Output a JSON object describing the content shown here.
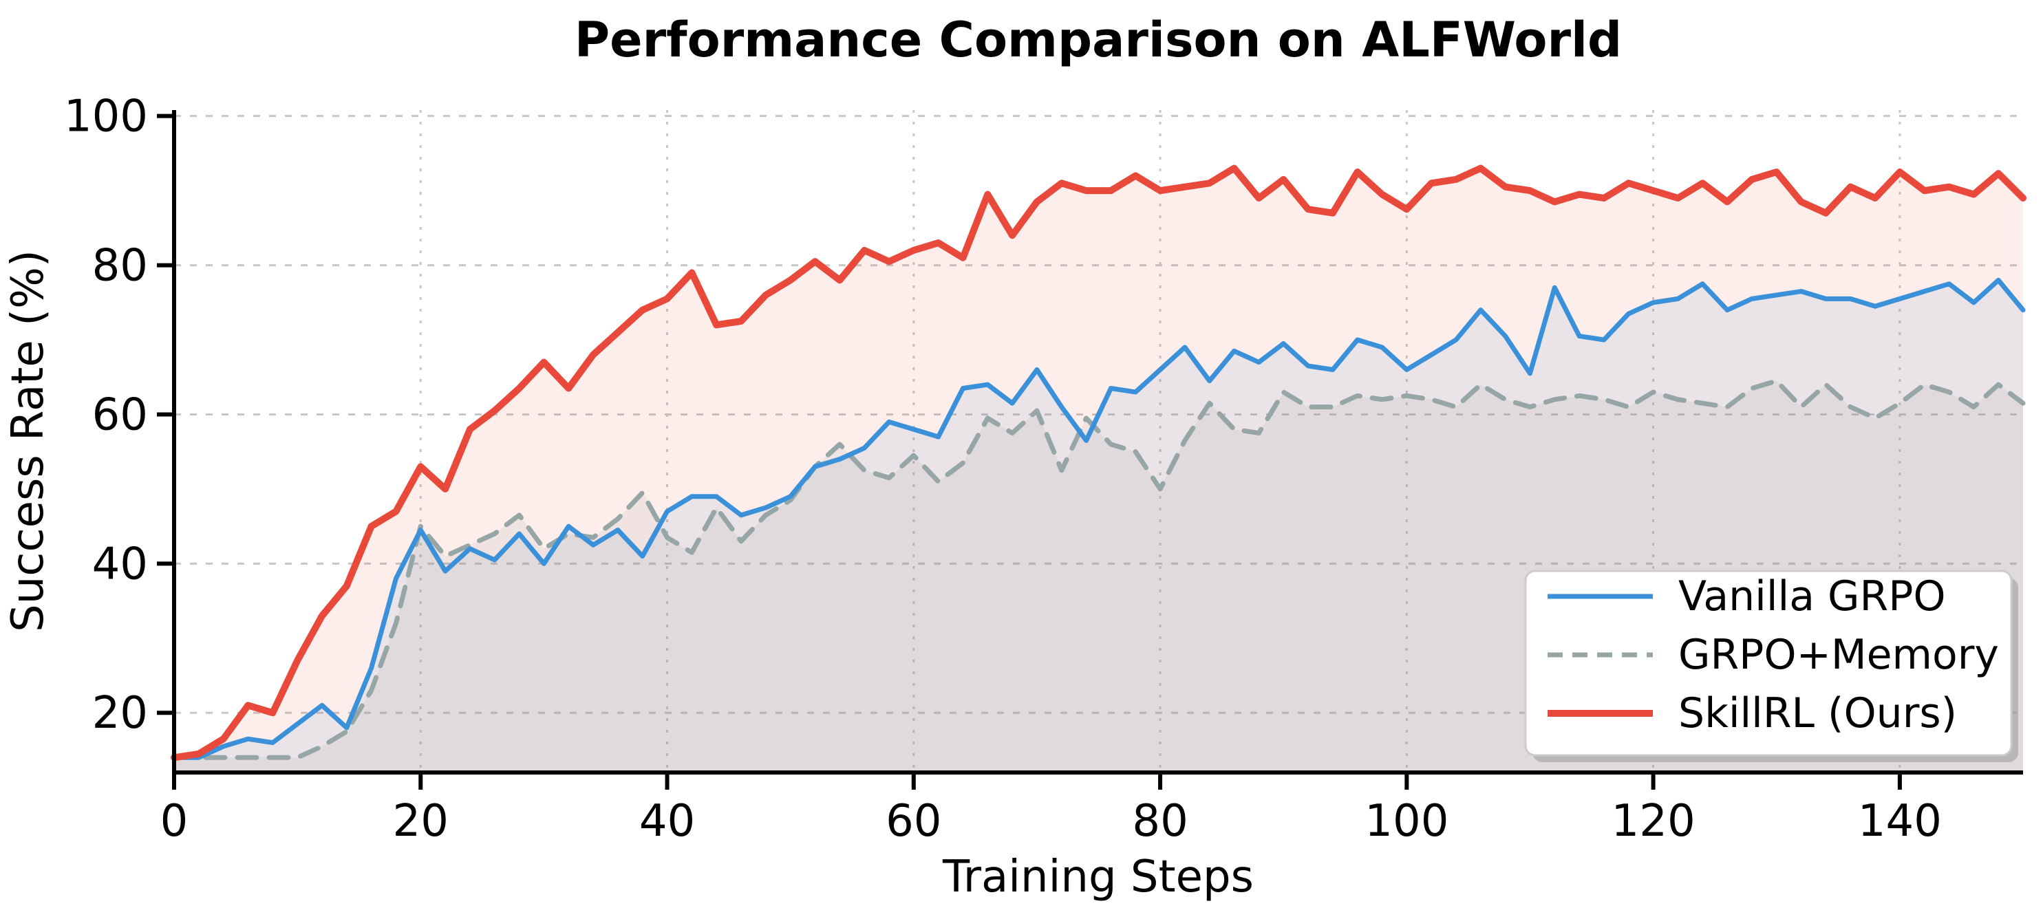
{
  "chart_data": {
    "type": "line",
    "title": "Performance Comparison on ALFWorld",
    "xlabel": "Training Steps",
    "ylabel": "Success Rate (%)",
    "xlim": [
      0,
      150
    ],
    "ylim": [
      12,
      100.8
    ],
    "xticks": [
      0,
      20,
      40,
      60,
      80,
      100,
      120,
      140
    ],
    "yticks": [
      20,
      40,
      60,
      80,
      100
    ],
    "grid": true,
    "grid_color": "#c8c8c8",
    "spine_color": "#000000",
    "legend": {
      "position": "lower right",
      "background": "#ffffff",
      "border_color": "#cccccc"
    },
    "x": [
      0,
      2,
      4,
      6,
      8,
      10,
      12,
      14,
      16,
      18,
      20,
      22,
      24,
      26,
      28,
      30,
      32,
      34,
      36,
      38,
      40,
      42,
      44,
      46,
      48,
      50,
      52,
      54,
      56,
      58,
      60,
      62,
      64,
      66,
      68,
      70,
      72,
      74,
      76,
      78,
      80,
      82,
      84,
      86,
      88,
      90,
      92,
      94,
      96,
      98,
      100,
      102,
      104,
      106,
      108,
      110,
      112,
      114,
      116,
      118,
      120,
      122,
      124,
      126,
      128,
      130,
      132,
      134,
      136,
      138,
      140,
      142,
      144,
      146,
      148,
      150
    ],
    "series": [
      {
        "name": "Vanilla GRPO",
        "color": "#3a90d9",
        "line_style": "solid",
        "line_width": 7,
        "fill_alpha": 0.1,
        "zorder": 2,
        "values": [
          14,
          14,
          15.5,
          16.5,
          16,
          18.5,
          21,
          18,
          26,
          38,
          44.5,
          39,
          42,
          40.5,
          44,
          40,
          45,
          42.5,
          44.5,
          41,
          47,
          49,
          49,
          46.5,
          47.5,
          49,
          53,
          54,
          55.5,
          59,
          58,
          57,
          63.5,
          64,
          61.5,
          66,
          61,
          56.5,
          63.5,
          63,
          66,
          69,
          64.5,
          68.5,
          67,
          69.5,
          66.5,
          66,
          70,
          69,
          66,
          68,
          70,
          74,
          70.5,
          65.5,
          77,
          70.5,
          70,
          73.5,
          75,
          75.5,
          77.5,
          74,
          75.5,
          76,
          76.5,
          75.5,
          75.5,
          74.5,
          75.5,
          76.5,
          77.5,
          75,
          78,
          74
        ]
      },
      {
        "name": "GRPO+Memory",
        "color": "#96a5a6",
        "line_style": "dashed",
        "line_width": 7,
        "fill_alpha": 0.13,
        "zorder": 1,
        "values": [
          14,
          14,
          14,
          14,
          14,
          14,
          15.5,
          17.5,
          23,
          32,
          45,
          41,
          42.5,
          44,
          46.5,
          42,
          44,
          43.5,
          46,
          49.5,
          43.5,
          41.5,
          47.5,
          43,
          46.5,
          48.5,
          53,
          56,
          52.5,
          51.5,
          54.5,
          51,
          53.5,
          59.5,
          57.5,
          60.5,
          52.5,
          59.5,
          56,
          55,
          50,
          56.5,
          61.5,
          58,
          57.5,
          63,
          61,
          61,
          62.5,
          62,
          62.5,
          62,
          61,
          64,
          62,
          61,
          62,
          62.5,
          62,
          61,
          63,
          62,
          61.5,
          61,
          63.5,
          64.5,
          61,
          64,
          61,
          59.5,
          61.5,
          64,
          63,
          61,
          64,
          61.5
        ]
      },
      {
        "name": "SkillRL (Ours)",
        "color": "#e8493a",
        "line_style": "solid",
        "line_width": 10,
        "fill_alpha": 0.095,
        "zorder": 3,
        "values": [
          14,
          14.5,
          16.5,
          21,
          20,
          27,
          33,
          37,
          45,
          47,
          53,
          50,
          58,
          60.5,
          63.5,
          67,
          63.5,
          68,
          71,
          74,
          75.5,
          79,
          72,
          72.5,
          76,
          78,
          80.5,
          78,
          82,
          80.5,
          82,
          83,
          81,
          89.5,
          84,
          88.5,
          91,
          90,
          90,
          92,
          90,
          90.5,
          91,
          93,
          89,
          91.5,
          87.5,
          87,
          92.5,
          89.5,
          87.5,
          91,
          91.5,
          93,
          90.5,
          90,
          88.5,
          89.5,
          89,
          91,
          90,
          89,
          91,
          88.5,
          91.5,
          92.5,
          88.5,
          87,
          90.5,
          89,
          92.5,
          90,
          90.5,
          89.5,
          92.3,
          89
        ]
      }
    ]
  }
}
